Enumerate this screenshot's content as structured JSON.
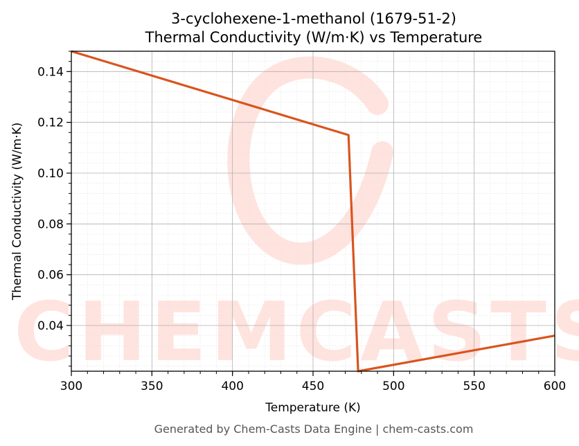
{
  "chart_data": {
    "type": "line",
    "title": "3-cyclohexene-1-methanol (1679-51-2)",
    "subtitle": "Thermal Conductivity (W/m·K) vs Temperature",
    "xlabel": "Temperature (K)",
    "ylabel": "Thermal Conductivity (W/m·K)",
    "xlim": [
      300,
      600
    ],
    "ylim": [
      0.022,
      0.148
    ],
    "xticks": [
      300,
      350,
      400,
      450,
      500,
      550,
      600
    ],
    "yticks": [
      0.04,
      0.06,
      0.08,
      0.1,
      0.12,
      0.14
    ],
    "ytick_labels": [
      "0.04",
      "0.06",
      "0.08",
      "0.10",
      "0.12",
      "0.14"
    ],
    "grid": true,
    "series": [
      {
        "color": "#d9541e",
        "x": [
          300,
          472,
          478,
          600
        ],
        "y": [
          0.148,
          0.115,
          0.022,
          0.036
        ]
      }
    ]
  },
  "watermark": {
    "text": "CHEMCASTS",
    "color": "#ffe3de"
  },
  "footer": "Generated by Chem-Casts Data Engine | chem-casts.com"
}
